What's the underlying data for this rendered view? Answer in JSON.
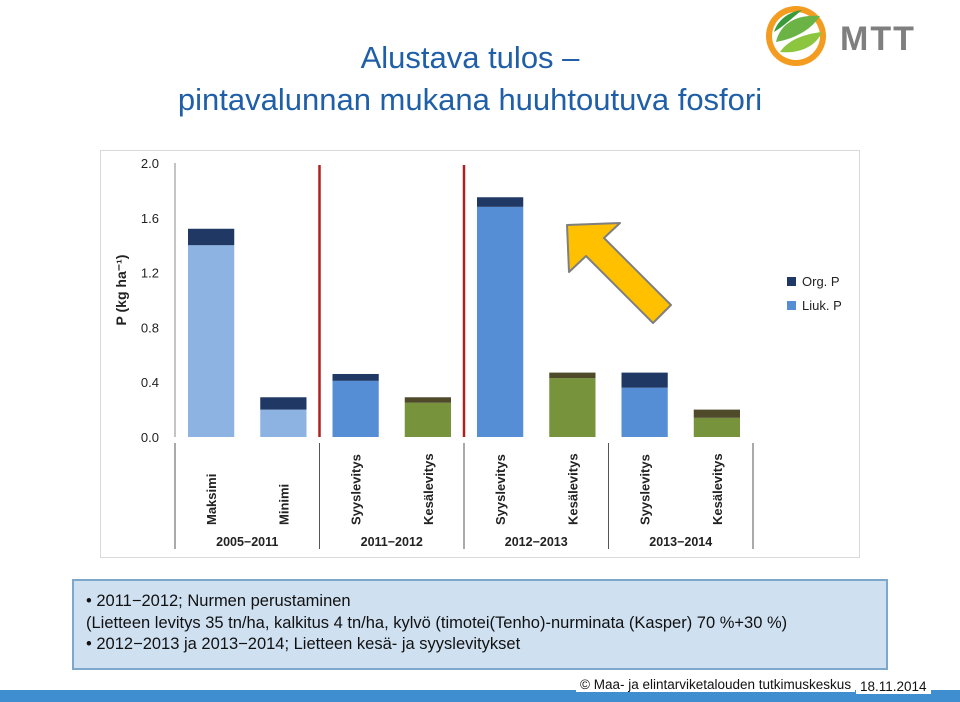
{
  "slide": {
    "title_line1": "Alustava tulos –",
    "title_line2": "pintavalunnan mukana huuhtoutuva fosfori",
    "logo_text": "MTT"
  },
  "colors": {
    "title": "#1f5fa8",
    "org_p": "#1f3864",
    "liuk_p_pale": "#8db3e2",
    "liuk_p_blue": "#558ed5",
    "liuk_p_green": "#77933c",
    "org_p_green": "#4f4a2a",
    "divider": "#b02020",
    "arrow_fill": "#ffc000",
    "arrow_stroke": "#7f7f7f"
  },
  "chart_data": {
    "type": "bar",
    "stacked": true,
    "ylabel": "P (kg ha⁻¹)",
    "ylim": [
      0.0,
      2.0
    ],
    "yticks": [
      "2.0",
      "1.6",
      "1.2",
      "0.8",
      "0.4",
      "0.0"
    ],
    "categories": [
      "Maksimi",
      "Minimi",
      "Syyslevitys",
      "Kesälevitys",
      "Syyslevitys",
      "Kesälevitys",
      "Syyslevitys",
      "Kesälevitys"
    ],
    "groups": [
      {
        "label": "2005−2011",
        "span": [
          0,
          1
        ]
      },
      {
        "label": "2011−2012",
        "span": [
          2,
          3
        ]
      },
      {
        "label": "2012−2013",
        "span": [
          4,
          5
        ]
      },
      {
        "label": "2013−2014",
        "span": [
          6,
          7
        ]
      }
    ],
    "series": [
      {
        "name": "Liuk. P",
        "values": [
          1.4,
          0.2,
          0.41,
          0.25,
          1.68,
          0.43,
          0.36,
          0.14
        ]
      },
      {
        "name": "Org. P",
        "values": [
          0.12,
          0.09,
          0.05,
          0.04,
          0.07,
          0.04,
          0.11,
          0.06
        ]
      }
    ],
    "legend": [
      "Org. P",
      "Liuk. P"
    ],
    "legend_position": "right",
    "grid": false
  },
  "notes": {
    "line1": "• 2011−2012; Nurmen perustaminen",
    "line2": "(Lietteen levitys 35 tn/ha, kalkitus 4 tn/ha, kylvö (timotei(Tenho)-nurminata (Kasper) 70 %+30 %)",
    "line3": "• 2012−2013 ja 2013−2014; Lietteen kesä- ja syyslevitykset"
  },
  "footer": {
    "copyright": "© Maa- ja elintarviketalouden tutkimuskeskus",
    "date": "18.11.2014"
  }
}
